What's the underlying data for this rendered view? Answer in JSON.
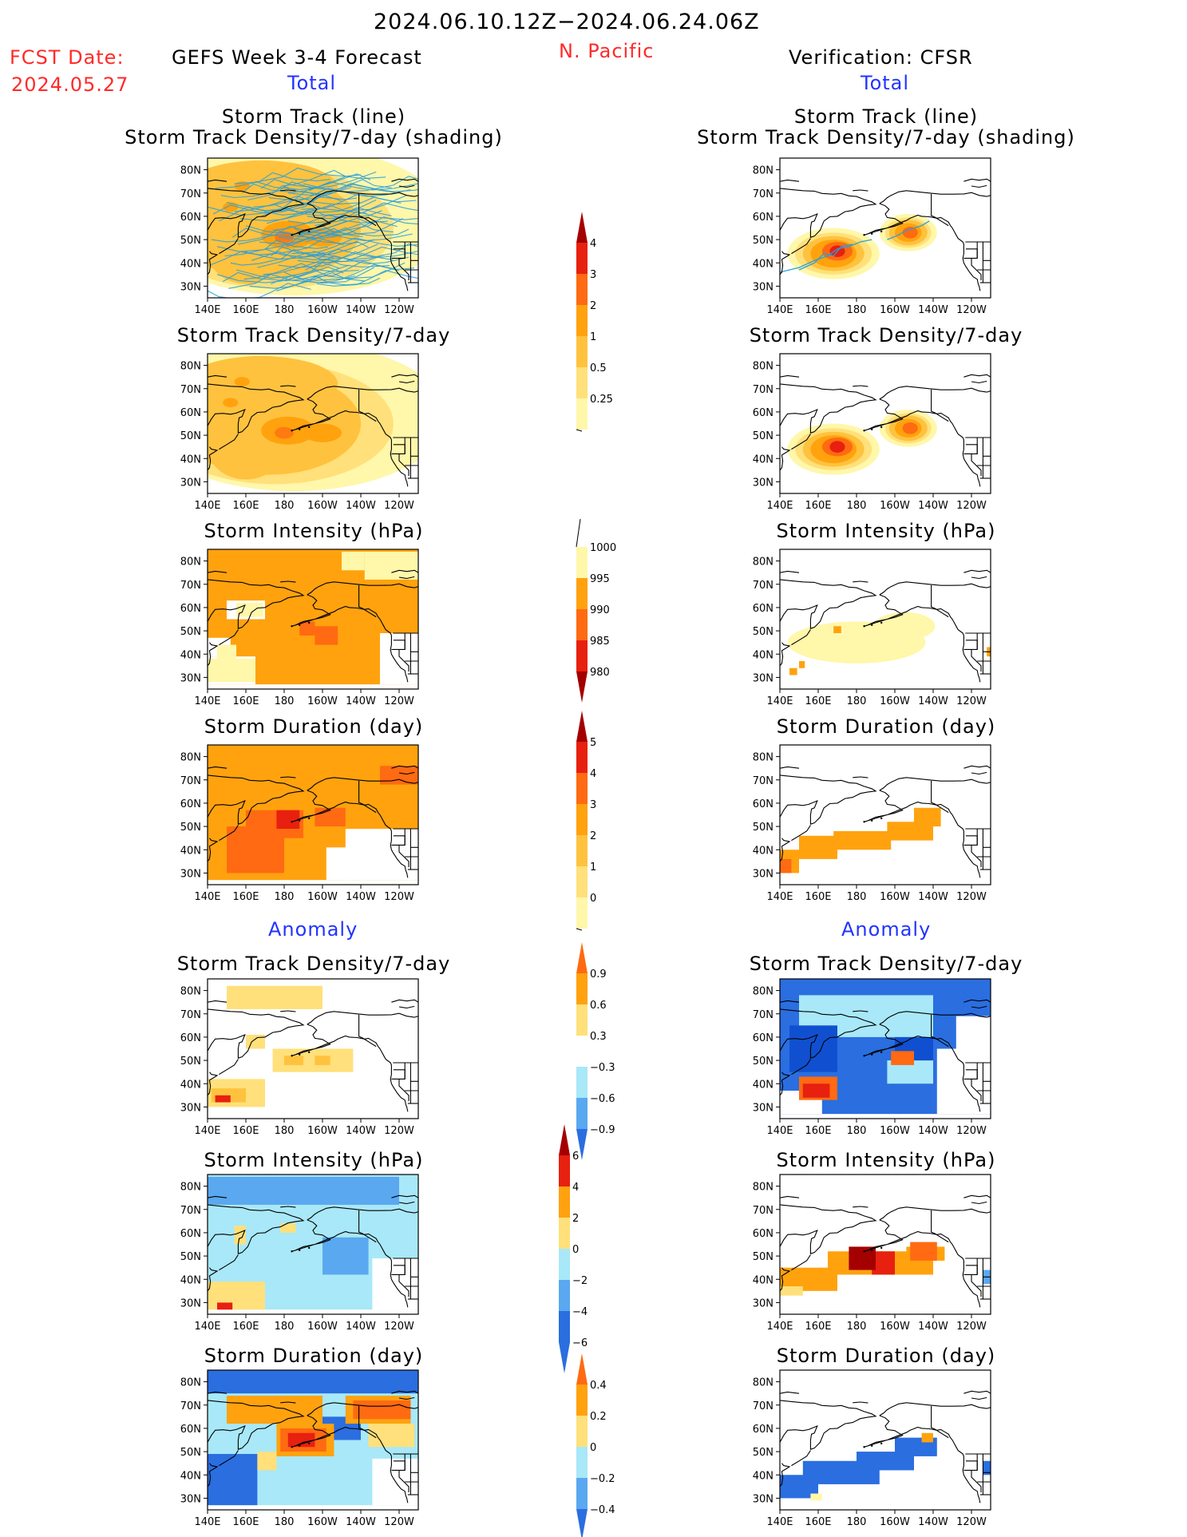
{
  "header": {
    "date_range": "2024.06.10.12Z−2024.06.24.06Z",
    "fcst_label": "FCST Date:",
    "fcst_date": "2024.05.27",
    "forecast_title": "GEFS Week 3-4 Forecast",
    "region": "N. Pacific",
    "verification_title": "Verification: CFSR",
    "total_left": "Total",
    "total_right": "Total",
    "anomaly_left": "Anomaly",
    "anomaly_right": "Anomaly"
  },
  "panel_titles": {
    "r1_line1": "Storm Track (line)",
    "r1_line2": "Storm Track Density/7-day (shading)",
    "density": "Storm Track Density/7-day",
    "intensity": "Storm Intensity (hPa)",
    "duration": "Storm Duration (day)"
  },
  "colors": {
    "c_pale": "#fff7aa",
    "c_yellow": "#ffe07a",
    "c_lorange": "#ffc23e",
    "c_orange": "#ffa20e",
    "c_dorange": "#ff6a12",
    "c_red": "#e8200f",
    "c_dred": "#a40000",
    "c_lblue": "#a8e8f8",
    "c_mblue": "#5aa8f0",
    "c_blue": "#2a6ee0",
    "c_dblue": "#1050d0",
    "track_line": "#2aa0d8"
  },
  "chart_data": [
    {
      "type": "heatmap",
      "panel": "forecast-total-track",
      "title": "Storm Track (line) / Storm Track Density/7-day (shading)",
      "x_ticks": [
        "140E",
        "160E",
        "180",
        "160W",
        "140W",
        "120W"
      ],
      "y_ticks": [
        "80N",
        "70N",
        "60N",
        "50N",
        "40N",
        "30N"
      ],
      "xlim": [
        "140E",
        "110W"
      ],
      "ylim": [
        "25N",
        "85N"
      ],
      "density_max": 2,
      "density_peak_region": "near 180, 50N",
      "has_track_lines": true
    },
    {
      "type": "heatmap",
      "panel": "verification-total-track",
      "title": "Storm Track (line) / Storm Track Density/7-day (shading)",
      "x_ticks": [
        "140E",
        "160E",
        "180",
        "160W",
        "140W",
        "120W"
      ],
      "y_ticks": [
        "80N",
        "70N",
        "60N",
        "50N",
        "40N",
        "30N"
      ],
      "density_max": 4,
      "density_peak_regions": [
        "170E, 45N",
        "150W, 52N"
      ],
      "has_track_lines": true
    },
    {
      "type": "heatmap",
      "panel": "forecast-total-density",
      "title": "Storm Track Density/7-day",
      "density_max": 2
    },
    {
      "type": "heatmap",
      "panel": "verification-total-density",
      "title": "Storm Track Density/7-day",
      "density_max": 4
    },
    {
      "type": "heatmap",
      "panel": "forecast-total-intensity",
      "title": "Storm Intensity (hPa)",
      "typical_value_hPa": 995
    },
    {
      "type": "heatmap",
      "panel": "verification-total-intensity",
      "title": "Storm Intensity (hPa)",
      "typical_value_hPa": 1000
    },
    {
      "type": "heatmap",
      "panel": "forecast-total-duration",
      "title": "Storm Duration (day)",
      "max_value_days": 4
    },
    {
      "type": "heatmap",
      "panel": "verification-total-duration",
      "title": "Storm Duration (day)",
      "typical_value_days": 2
    },
    {
      "type": "heatmap",
      "panel": "forecast-anomaly-density",
      "title": "Storm Track Density/7-day",
      "range": [
        0.3,
        0.9
      ]
    },
    {
      "type": "heatmap",
      "panel": "verification-anomaly-density",
      "title": "Storm Track Density/7-day",
      "range": [
        -0.9,
        0.9
      ]
    },
    {
      "type": "heatmap",
      "panel": "forecast-anomaly-intensity",
      "title": "Storm Intensity (hPa)",
      "range": [
        -4,
        4
      ]
    },
    {
      "type": "heatmap",
      "panel": "verification-anomaly-intensity",
      "title": "Storm Intensity (hPa)",
      "range": [
        2,
        6
      ]
    },
    {
      "type": "heatmap",
      "panel": "forecast-anomaly-duration",
      "title": "Storm Duration (day)",
      "range": [
        -0.4,
        0.4
      ]
    },
    {
      "type": "heatmap",
      "panel": "verification-anomaly-duration",
      "title": "Storm Duration (day)",
      "range": [
        -0.4,
        0.2
      ]
    }
  ],
  "map_axes": {
    "x_ticks": [
      "140E",
      "160E",
      "180",
      "160W",
      "140W",
      "120W"
    ],
    "y_ticks": [
      "80N",
      "70N",
      "60N",
      "50N",
      "40N",
      "30N"
    ]
  },
  "colorbars": {
    "density_total": [
      "0.25",
      "0.5",
      "1",
      "2",
      "3",
      "4"
    ],
    "intensity_total": [
      "1000",
      "995",
      "990",
      "985",
      "980"
    ],
    "duration_total": [
      "0",
      "1",
      "2",
      "3",
      "4",
      "5"
    ],
    "density_anom": [
      "0.9",
      "0.6",
      "0.3",
      "−0.3",
      "−0.6",
      "−0.9"
    ],
    "intensity_anom": [
      "6",
      "4",
      "2",
      "0",
      "−2",
      "−4",
      "−6"
    ],
    "duration_anom": [
      "0.4",
      "0.2",
      "0",
      "−0.2",
      "−0.4"
    ]
  }
}
